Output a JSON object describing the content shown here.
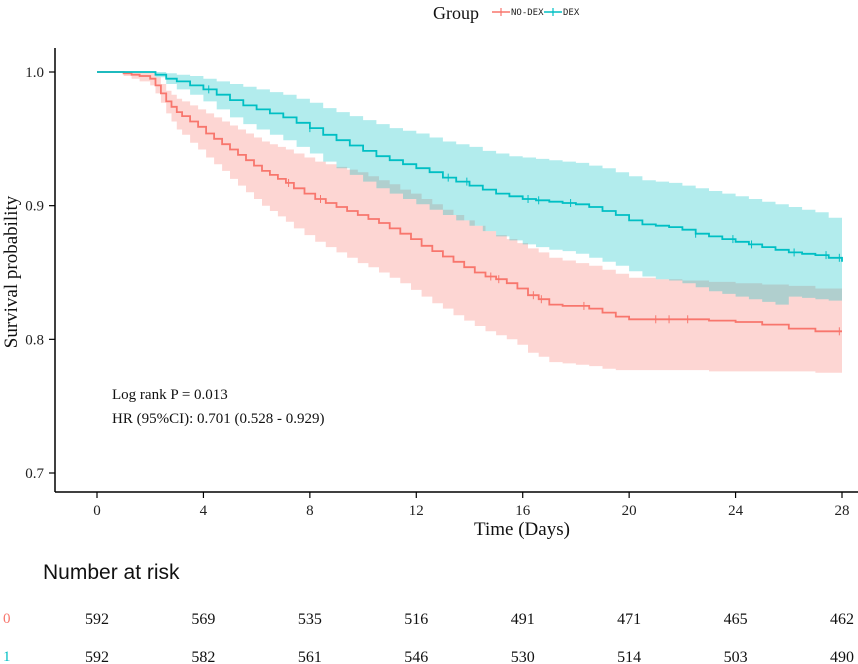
{
  "chart_data": {
    "type": "line",
    "subtype": "kaplan-meier survival curve",
    "xlabel": "Time (Days)",
    "ylabel": "Survival probability",
    "xlim": [
      0,
      28
    ],
    "ylim": [
      0.7,
      1.0
    ],
    "xticks": [
      0,
      4,
      8,
      12,
      16,
      20,
      24,
      28
    ],
    "yticks": [
      0.7,
      0.8,
      0.9,
      1.0
    ],
    "xtick_labels": [
      "0",
      "4",
      "8",
      "12",
      "16",
      "20",
      "24",
      "28"
    ],
    "ytick_labels": [
      "0.7",
      "0.8",
      "0.9",
      "1.0"
    ],
    "legend": {
      "title": "Group",
      "position": "top-center",
      "entries": [
        "NO-DEX",
        "DEX"
      ]
    },
    "annotations": {
      "logrank": "Log rank P = 0.013",
      "hr": "HR (95%CI): 0.701 (0.528 - 0.929)"
    },
    "series": [
      {
        "name": "NO-DEX",
        "color": "#F8766D",
        "band_color": "#F8766D",
        "x": [
          0,
          0.8,
          1.0,
          1.3,
          1.6,
          2.0,
          2.2,
          2.4,
          2.6,
          2.8,
          3.0,
          3.2,
          3.5,
          3.8,
          4.1,
          4.4,
          4.7,
          5.0,
          5.3,
          5.6,
          5.9,
          6.2,
          6.5,
          6.8,
          7.1,
          7.4,
          7.8,
          8.2,
          8.6,
          9.0,
          9.4,
          9.8,
          10.2,
          10.6,
          11.0,
          11.4,
          11.8,
          12.2,
          12.6,
          13.0,
          13.4,
          13.8,
          14.2,
          14.6,
          15.0,
          15.4,
          15.8,
          16.2,
          16.6,
          17.0,
          17.5,
          18.0,
          18.5,
          19.0,
          19.5,
          20.0,
          21.0,
          22.0,
          23.0,
          24.0,
          25.0,
          26.0,
          27.0,
          28.0
        ],
        "survival": [
          1.0,
          1.0,
          0.999,
          0.998,
          0.997,
          0.995,
          0.99,
          0.984,
          0.978,
          0.974,
          0.97,
          0.967,
          0.963,
          0.959,
          0.954,
          0.95,
          0.946,
          0.942,
          0.938,
          0.934,
          0.93,
          0.926,
          0.923,
          0.92,
          0.917,
          0.913,
          0.909,
          0.905,
          0.902,
          0.899,
          0.896,
          0.893,
          0.89,
          0.887,
          0.883,
          0.879,
          0.875,
          0.87,
          0.866,
          0.862,
          0.858,
          0.854,
          0.85,
          0.847,
          0.845,
          0.842,
          0.838,
          0.833,
          0.83,
          0.826,
          0.825,
          0.825,
          0.823,
          0.82,
          0.817,
          0.815,
          0.815,
          0.815,
          0.814,
          0.813,
          0.811,
          0.808,
          0.806,
          0.806
        ],
        "lower": [
          1.0,
          1.0,
          0.997,
          0.995,
          0.993,
          0.99,
          0.984,
          0.977,
          0.969,
          0.963,
          0.957,
          0.953,
          0.947,
          0.942,
          0.936,
          0.931,
          0.926,
          0.92,
          0.915,
          0.91,
          0.905,
          0.9,
          0.896,
          0.892,
          0.888,
          0.883,
          0.878,
          0.873,
          0.869,
          0.865,
          0.861,
          0.857,
          0.854,
          0.85,
          0.846,
          0.842,
          0.837,
          0.832,
          0.827,
          0.823,
          0.818,
          0.814,
          0.81,
          0.806,
          0.803,
          0.8,
          0.796,
          0.79,
          0.787,
          0.783,
          0.782,
          0.781,
          0.78,
          0.778,
          0.777,
          0.777,
          0.777,
          0.777,
          0.776,
          0.776,
          0.776,
          0.776,
          0.775,
          0.775
        ],
        "upper": [
          1.0,
          1.0,
          1.0,
          1.0,
          1.0,
          1.0,
          0.996,
          0.991,
          0.986,
          0.983,
          0.98,
          0.978,
          0.975,
          0.972,
          0.969,
          0.966,
          0.963,
          0.96,
          0.957,
          0.954,
          0.951,
          0.948,
          0.946,
          0.944,
          0.942,
          0.939,
          0.936,
          0.933,
          0.931,
          0.929,
          0.927,
          0.925,
          0.922,
          0.919,
          0.916,
          0.912,
          0.909,
          0.905,
          0.901,
          0.897,
          0.893,
          0.889,
          0.885,
          0.881,
          0.878,
          0.875,
          0.872,
          0.868,
          0.865,
          0.861,
          0.859,
          0.857,
          0.855,
          0.852,
          0.849,
          0.846,
          0.845,
          0.844,
          0.843,
          0.842,
          0.841,
          0.84,
          0.838,
          0.838
        ],
        "censor_x": [
          7.2,
          8.4,
          14.8,
          15.1,
          16.4,
          16.7,
          18.3,
          21.0,
          21.5,
          22.2,
          27.9
        ]
      },
      {
        "name": "DEX",
        "color": "#00BFC4",
        "band_color": "#00BFC4",
        "x": [
          0,
          1.0,
          1.5,
          2.0,
          2.2,
          2.6,
          3.0,
          3.5,
          4.0,
          4.5,
          5.0,
          5.5,
          6.0,
          6.5,
          7.0,
          7.5,
          8.0,
          8.5,
          9.0,
          9.5,
          10.0,
          10.5,
          11.0,
          11.5,
          12.0,
          12.5,
          13.0,
          13.5,
          14.0,
          14.5,
          15.0,
          15.5,
          16.0,
          16.5,
          17.0,
          17.5,
          18.0,
          18.5,
          19.0,
          19.5,
          20.0,
          20.5,
          21.0,
          21.5,
          22.0,
          22.5,
          23.0,
          23.5,
          24.0,
          24.5,
          25.0,
          25.5,
          26.0,
          26.5,
          27.0,
          27.5,
          28.0
        ],
        "survival": [
          1.0,
          1.0,
          1.0,
          1.0,
          0.998,
          0.995,
          0.993,
          0.99,
          0.987,
          0.983,
          0.979,
          0.975,
          0.972,
          0.969,
          0.966,
          0.962,
          0.958,
          0.953,
          0.949,
          0.945,
          0.941,
          0.937,
          0.934,
          0.931,
          0.928,
          0.925,
          0.921,
          0.918,
          0.915,
          0.912,
          0.909,
          0.907,
          0.905,
          0.904,
          0.903,
          0.902,
          0.901,
          0.899,
          0.896,
          0.893,
          0.889,
          0.886,
          0.885,
          0.884,
          0.882,
          0.879,
          0.877,
          0.875,
          0.873,
          0.871,
          0.869,
          0.867,
          0.865,
          0.864,
          0.863,
          0.861,
          0.858
        ],
        "lower": [
          1.0,
          1.0,
          1.0,
          1.0,
          0.996,
          0.991,
          0.987,
          0.983,
          0.978,
          0.972,
          0.966,
          0.961,
          0.957,
          0.953,
          0.949,
          0.944,
          0.939,
          0.933,
          0.928,
          0.923,
          0.918,
          0.913,
          0.909,
          0.905,
          0.901,
          0.897,
          0.893,
          0.889,
          0.885,
          0.881,
          0.877,
          0.874,
          0.871,
          0.869,
          0.867,
          0.866,
          0.864,
          0.861,
          0.858,
          0.855,
          0.851,
          0.847,
          0.845,
          0.844,
          0.842,
          0.839,
          0.836,
          0.834,
          0.832,
          0.83,
          0.828,
          0.826,
          0.832,
          0.831,
          0.83,
          0.829,
          0.829
        ],
        "upper": [
          1.0,
          1.0,
          1.0,
          1.0,
          1.0,
          0.999,
          0.998,
          0.997,
          0.995,
          0.993,
          0.991,
          0.989,
          0.987,
          0.985,
          0.983,
          0.98,
          0.977,
          0.973,
          0.97,
          0.967,
          0.964,
          0.961,
          0.958,
          0.956,
          0.954,
          0.951,
          0.948,
          0.946,
          0.944,
          0.941,
          0.939,
          0.937,
          0.936,
          0.935,
          0.934,
          0.933,
          0.932,
          0.93,
          0.928,
          0.925,
          0.922,
          0.919,
          0.918,
          0.917,
          0.915,
          0.913,
          0.911,
          0.909,
          0.907,
          0.905,
          0.903,
          0.901,
          0.899,
          0.897,
          0.895,
          0.891,
          0.887
        ],
        "censor_x": [
          4.2,
          8.0,
          13.2,
          13.9,
          16.2,
          16.6,
          17.8,
          22.5,
          23.9,
          24.6,
          26.2,
          27.4,
          27.9
        ]
      }
    ]
  },
  "risk_table": {
    "title": "Number at risk",
    "times": [
      0,
      4,
      8,
      12,
      16,
      20,
      24,
      28
    ],
    "rows": [
      {
        "group": "0",
        "color": "#F8766D",
        "values": [
          "592",
          "569",
          "535",
          "516",
          "491",
          "471",
          "465",
          "462"
        ]
      },
      {
        "group": "1",
        "color": "#00BFC4",
        "values": [
          "592",
          "582",
          "561",
          "546",
          "530",
          "514",
          "503",
          "490"
        ]
      }
    ]
  }
}
